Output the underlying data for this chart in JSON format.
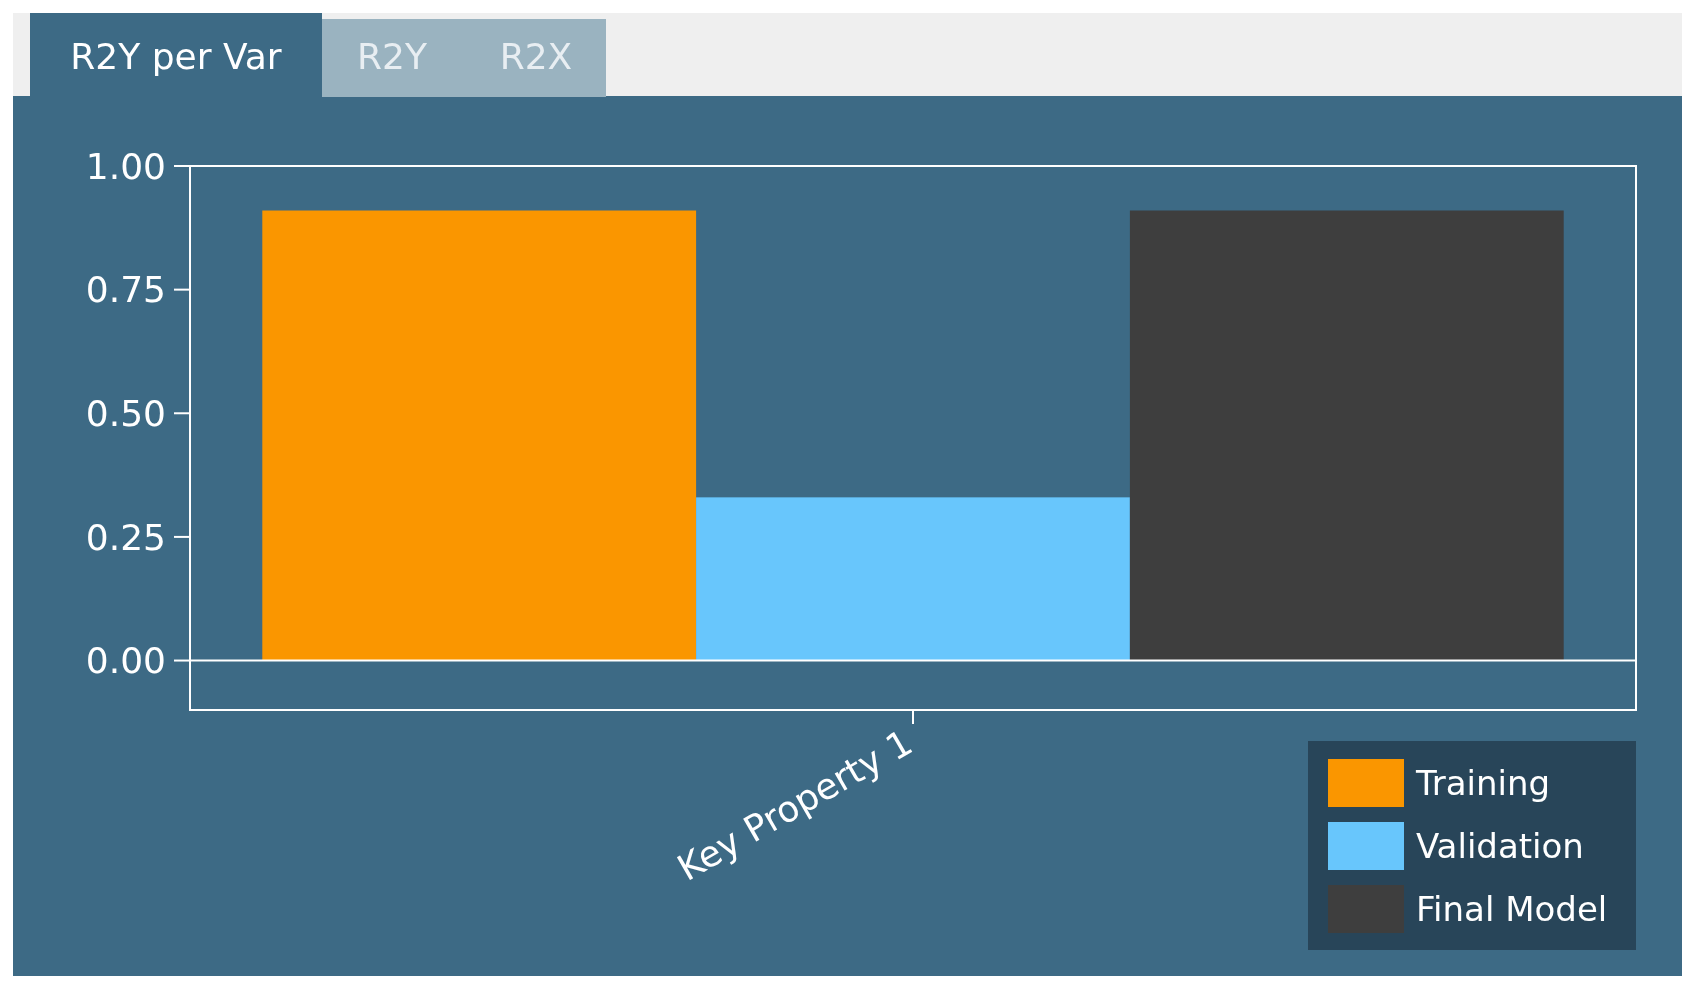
{
  "chart_data": {
    "type": "bar",
    "annotations": [
      "R2Y per Var",
      "R2Y",
      "R2X"
    ],
    "categories": [
      "Key Property 1"
    ],
    "series": [
      {
        "name": "Training",
        "color": "#fa9600",
        "values": [
          0.91
        ]
      },
      {
        "name": "Validation",
        "color": "#68c6fc",
        "values": [
          0.33
        ]
      },
      {
        "name": "Final Model",
        "color": "#3e3e3e",
        "values": [
          0.91
        ]
      }
    ],
    "ylim": [
      -0.1,
      1.0
    ],
    "yticks": [
      {
        "value": 0,
        "label": "0.00"
      },
      {
        "value": 0.25,
        "label": "0.25"
      },
      {
        "value": 0.5,
        "label": "0.50"
      },
      {
        "value": 0.75,
        "label": "0.75"
      },
      {
        "value": 1,
        "label": "1.00"
      }
    ],
    "ref_lines": [
      {
        "axis": "y",
        "value": 0,
        "color": "#ffffff"
      }
    ],
    "legend": "bottom right"
  }
}
